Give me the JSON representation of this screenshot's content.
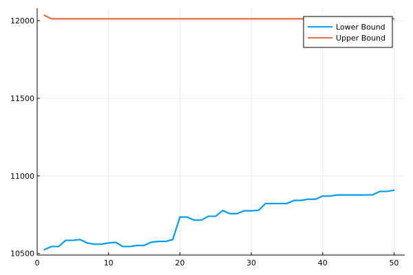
{
  "chart_data": {
    "type": "line",
    "title": "",
    "xlabel": "",
    "ylabel": "",
    "xlim": [
      0,
      51.5
    ],
    "ylim": [
      10490,
      12080
    ],
    "xticks": [
      0,
      10,
      20,
      30,
      40,
      50
    ],
    "yticks": [
      10500,
      11000,
      11500,
      12000
    ],
    "grid": true,
    "legend_position": "top-right",
    "series": [
      {
        "name": "Lower Bound",
        "color": "#009af9",
        "x": [
          1,
          2,
          3,
          4,
          5,
          6,
          7,
          8,
          9,
          10,
          11,
          12,
          13,
          14,
          15,
          16,
          17,
          18,
          19,
          20,
          21,
          22,
          23,
          24,
          25,
          26,
          27,
          28,
          29,
          30,
          31,
          32,
          33,
          34,
          35,
          36,
          37,
          38,
          39,
          40,
          41,
          42,
          43,
          44,
          45,
          46,
          47,
          48,
          49,
          50
        ],
        "values": [
          10525,
          10545,
          10545,
          10585,
          10585,
          10590,
          10568,
          10560,
          10560,
          10568,
          10572,
          10545,
          10545,
          10552,
          10552,
          10573,
          10578,
          10578,
          10590,
          10735,
          10735,
          10715,
          10715,
          10740,
          10740,
          10777,
          10757,
          10757,
          10775,
          10775,
          10778,
          10822,
          10822,
          10822,
          10822,
          10842,
          10842,
          10850,
          10850,
          10870,
          10870,
          10877,
          10877,
          10877,
          10877,
          10877,
          10878,
          10900,
          10900,
          10908
        ]
      },
      {
        "name": "Upper Bound",
        "color": "#e26f46",
        "x": [
          1,
          2,
          3,
          4,
          5,
          6,
          7,
          8,
          9,
          10,
          11,
          12,
          13,
          14,
          15,
          16,
          17,
          18,
          19,
          20,
          21,
          22,
          23,
          24,
          25,
          26,
          27,
          28,
          29,
          30,
          31,
          32,
          33,
          34,
          35,
          36,
          37,
          38,
          39,
          40,
          41,
          42,
          43,
          44,
          45,
          46,
          47,
          48,
          49,
          50
        ],
        "values": [
          12035,
          12012,
          12012,
          12012,
          12012,
          12012,
          12012,
          12012,
          12012,
          12012,
          12012,
          12012,
          12012,
          12012,
          12012,
          12012,
          12012,
          12012,
          12012,
          12012,
          12012,
          12012,
          12012,
          12012,
          12012,
          12012,
          12012,
          12012,
          12012,
          12012,
          12012,
          12012,
          12012,
          12012,
          12012,
          12012,
          12012,
          12012,
          12012,
          12012,
          12012,
          12012,
          12012,
          12012,
          12012,
          12012,
          12012,
          12012,
          12012,
          12012
        ]
      }
    ]
  }
}
